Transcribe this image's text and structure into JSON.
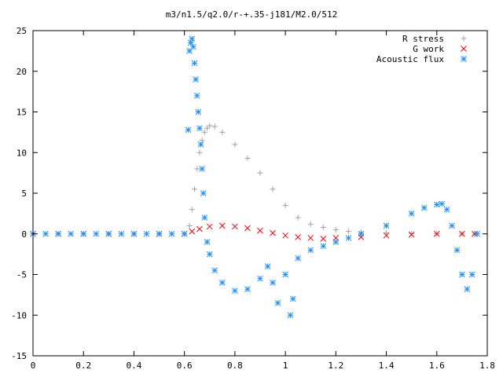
{
  "chart_data": {
    "type": "scatter",
    "title": "m3/n1.5/q2.0/r-+.35-j181/M2.0/512",
    "xlabel": "",
    "ylabel": "",
    "xlim": [
      0,
      1.8
    ],
    "ylim": [
      -15,
      25
    ],
    "x_ticks": [
      0,
      0.2,
      0.4,
      0.6,
      0.8,
      1,
      1.2,
      1.4,
      1.6,
      1.8
    ],
    "x_tick_labels": [
      "0",
      "0.2",
      "0.4",
      "0.6",
      "0.8",
      "1",
      "1.2",
      "1.4",
      "1.6",
      "1.8"
    ],
    "y_ticks": [
      -15,
      -10,
      -5,
      0,
      5,
      10,
      15,
      20,
      25
    ],
    "y_tick_labels": [
      "-15",
      "-10",
      "-5",
      "0",
      "5",
      "10",
      "15",
      "20",
      "25"
    ],
    "grid": false,
    "legend_position": "top-right",
    "series": [
      {
        "name": "R stress",
        "marker": "plus",
        "color": "#a0a0a0",
        "points": [
          [
            0.0,
            0
          ],
          [
            0.1,
            0
          ],
          [
            0.2,
            0
          ],
          [
            0.3,
            0
          ],
          [
            0.4,
            0
          ],
          [
            0.5,
            0
          ],
          [
            0.6,
            0
          ],
          [
            0.62,
            1
          ],
          [
            0.63,
            3
          ],
          [
            0.64,
            5.5
          ],
          [
            0.65,
            8
          ],
          [
            0.66,
            10
          ],
          [
            0.67,
            11.5
          ],
          [
            0.68,
            12.5
          ],
          [
            0.69,
            13
          ],
          [
            0.7,
            13.3
          ],
          [
            0.72,
            13.2
          ],
          [
            0.75,
            12.5
          ],
          [
            0.8,
            11
          ],
          [
            0.85,
            9.3
          ],
          [
            0.9,
            7.5
          ],
          [
            0.95,
            5.5
          ],
          [
            1.0,
            3.5
          ],
          [
            1.05,
            2.0
          ],
          [
            1.1,
            1.2
          ],
          [
            1.15,
            0.8
          ],
          [
            1.2,
            0.5
          ],
          [
            1.25,
            0.3
          ],
          [
            1.3,
            0.2
          ],
          [
            1.4,
            0.1
          ],
          [
            1.5,
            0.05
          ],
          [
            1.6,
            0.02
          ],
          [
            1.7,
            0
          ],
          [
            1.75,
            0
          ]
        ]
      },
      {
        "name": "G work",
        "marker": "cross",
        "color": "#ff0000",
        "points": [
          [
            0.0,
            0
          ],
          [
            0.1,
            0
          ],
          [
            0.2,
            0
          ],
          [
            0.3,
            0
          ],
          [
            0.4,
            0
          ],
          [
            0.5,
            0
          ],
          [
            0.6,
            0
          ],
          [
            0.63,
            0.3
          ],
          [
            0.66,
            0.6
          ],
          [
            0.7,
            0.9
          ],
          [
            0.75,
            1.0
          ],
          [
            0.8,
            0.9
          ],
          [
            0.85,
            0.7
          ],
          [
            0.9,
            0.4
          ],
          [
            0.95,
            0.1
          ],
          [
            1.0,
            -0.2
          ],
          [
            1.05,
            -0.4
          ],
          [
            1.1,
            -0.5
          ],
          [
            1.15,
            -0.6
          ],
          [
            1.2,
            -0.5
          ],
          [
            1.3,
            -0.4
          ],
          [
            1.4,
            -0.2
          ],
          [
            1.5,
            -0.1
          ],
          [
            1.6,
            0
          ],
          [
            1.7,
            0
          ],
          [
            1.75,
            0
          ]
        ]
      },
      {
        "name": "Acoustic flux",
        "marker": "star",
        "color": "#1e90ff",
        "points": [
          [
            0.0,
            0
          ],
          [
            0.05,
            0
          ],
          [
            0.1,
            0
          ],
          [
            0.15,
            0
          ],
          [
            0.2,
            0
          ],
          [
            0.25,
            0
          ],
          [
            0.3,
            0
          ],
          [
            0.35,
            0
          ],
          [
            0.4,
            0
          ],
          [
            0.45,
            0
          ],
          [
            0.5,
            0
          ],
          [
            0.55,
            0
          ],
          [
            0.6,
            0
          ],
          [
            0.615,
            12.8
          ],
          [
            0.62,
            22.5
          ],
          [
            0.625,
            23.5
          ],
          [
            0.63,
            24
          ],
          [
            0.635,
            23
          ],
          [
            0.64,
            21
          ],
          [
            0.645,
            19
          ],
          [
            0.65,
            17
          ],
          [
            0.655,
            15
          ],
          [
            0.66,
            13
          ],
          [
            0.665,
            11
          ],
          [
            0.67,
            8
          ],
          [
            0.675,
            5
          ],
          [
            0.68,
            2
          ],
          [
            0.69,
            -1
          ],
          [
            0.7,
            -2.5
          ],
          [
            0.72,
            -4.5
          ],
          [
            0.75,
            -6
          ],
          [
            0.8,
            -7
          ],
          [
            0.85,
            -6.8
          ],
          [
            0.9,
            -5.5
          ],
          [
            0.93,
            -4
          ],
          [
            0.95,
            -6
          ],
          [
            0.97,
            -8.5
          ],
          [
            1.0,
            -5
          ],
          [
            1.02,
            -10
          ],
          [
            1.03,
            -8
          ],
          [
            1.05,
            -3
          ],
          [
            1.1,
            -2
          ],
          [
            1.15,
            -1.5
          ],
          [
            1.2,
            -1
          ],
          [
            1.25,
            -0.5
          ],
          [
            1.3,
            0
          ],
          [
            1.4,
            1
          ],
          [
            1.5,
            2.5
          ],
          [
            1.55,
            3.2
          ],
          [
            1.6,
            3.6
          ],
          [
            1.62,
            3.7
          ],
          [
            1.64,
            3
          ],
          [
            1.66,
            1
          ],
          [
            1.68,
            -2
          ],
          [
            1.7,
            -5
          ],
          [
            1.72,
            -6.8
          ],
          [
            1.74,
            -5
          ],
          [
            1.76,
            0
          ]
        ]
      }
    ]
  }
}
